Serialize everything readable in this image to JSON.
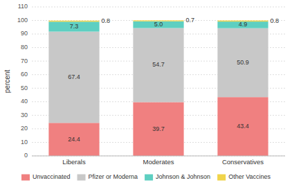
{
  "chart_data": {
    "type": "bar",
    "stacked": true,
    "ylabel": "percent",
    "categories": [
      "Liberals",
      "Moderates",
      "Conservatives"
    ],
    "series": [
      {
        "name": "Unvaccinated",
        "color": "#f08080",
        "values": [
          24.4,
          39.7,
          43.4
        ]
      },
      {
        "name": "Pfizer or Moderna",
        "color": "#c8c8c8",
        "values": [
          67.4,
          54.7,
          50.9
        ]
      },
      {
        "name": "Johnson & Johnson",
        "color": "#5ecfc1",
        "values": [
          7.3,
          5.0,
          4.9
        ],
        "value_labels": [
          "7.3",
          "5.0",
          "4.9"
        ]
      },
      {
        "name": "Other Vaccines",
        "color": "#f0d44a",
        "values": [
          0.8,
          0.7,
          0.8
        ]
      }
    ],
    "ylim": [
      0,
      110
    ],
    "yticks": [
      0,
      10,
      20,
      30,
      40,
      50,
      60,
      70,
      80,
      90,
      100,
      110
    ],
    "grid": true,
    "legend": "bottom",
    "data_labels": true
  }
}
